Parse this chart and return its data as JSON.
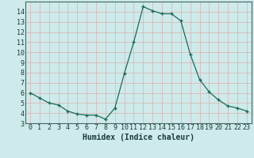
{
  "x": [
    0,
    1,
    2,
    3,
    4,
    5,
    6,
    7,
    8,
    9,
    10,
    11,
    12,
    13,
    14,
    15,
    16,
    17,
    18,
    19,
    20,
    21,
    22,
    23
  ],
  "y": [
    6.0,
    5.5,
    5.0,
    4.8,
    4.2,
    3.9,
    3.8,
    3.8,
    3.4,
    4.5,
    7.9,
    11.0,
    14.5,
    14.1,
    13.8,
    13.8,
    13.1,
    9.8,
    7.3,
    6.1,
    5.3,
    4.7,
    4.5,
    4.2
  ],
  "xlabel": "Humidex (Indice chaleur)",
  "xlim": [
    -0.5,
    23.5
  ],
  "ylim": [
    3,
    15
  ],
  "yticks": [
    3,
    4,
    5,
    6,
    7,
    8,
    9,
    10,
    11,
    12,
    13,
    14
  ],
  "xticks": [
    0,
    1,
    2,
    3,
    4,
    5,
    6,
    7,
    8,
    9,
    10,
    11,
    12,
    13,
    14,
    15,
    16,
    17,
    18,
    19,
    20,
    21,
    22,
    23
  ],
  "xtick_labels": [
    "0",
    "1",
    "2",
    "3",
    "4",
    "5",
    "6",
    "7",
    "8",
    "9",
    "10",
    "11",
    "12",
    "13",
    "14",
    "15",
    "16",
    "17",
    "18",
    "19",
    "20",
    "21",
    "22",
    "23"
  ],
  "line_color": "#1a6b5a",
  "bg_color": "#ceeaea",
  "grid_major_color": "#b8b8b8",
  "grid_minor_color": "#dbb0b0",
  "xlabel_fontsize": 7,
  "tick_fontsize": 6
}
